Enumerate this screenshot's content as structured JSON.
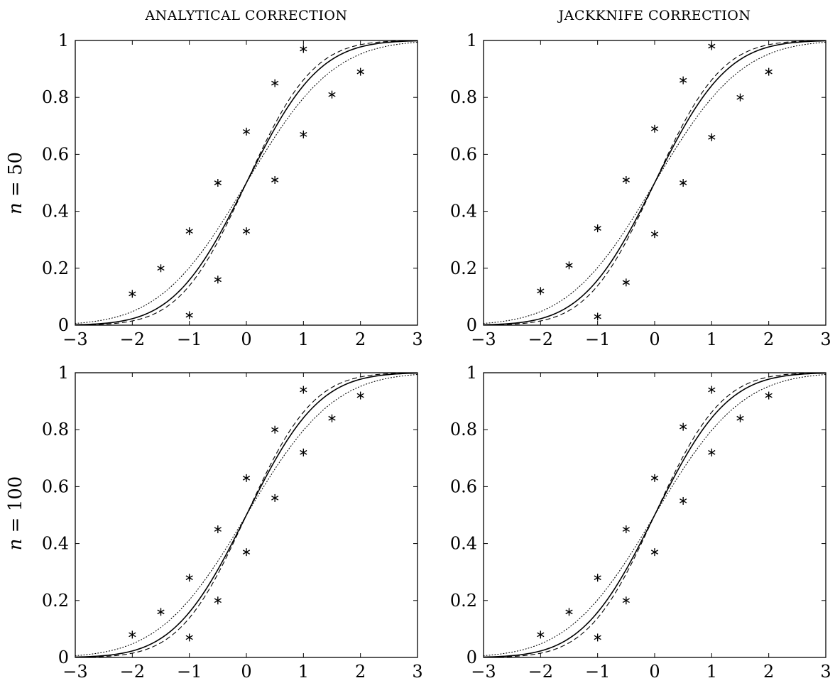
{
  "column_titles": [
    "ANALYTICAL CORRECTION",
    "JACKKNIFE CORRECTION"
  ],
  "row_labels": [
    {
      "var": "n",
      "eq": " = 50"
    },
    {
      "var": "n",
      "eq": " = 100"
    }
  ],
  "chart_data": [
    {
      "type": "line",
      "title": "ANALYTICAL CORRECTION",
      "row_label": "n = 50",
      "xlim": [
        -3,
        3
      ],
      "ylim": [
        0,
        1
      ],
      "xticks": [
        -3,
        -2,
        -1,
        0,
        1,
        2,
        3
      ],
      "yticks": [
        0,
        0.2,
        0.4,
        0.6,
        0.8,
        1
      ],
      "grid": false,
      "series": [
        {
          "style": "solid",
          "curve": "normal_cdf",
          "sigma": 1.0
        },
        {
          "style": "dashed",
          "curve": "normal_cdf",
          "sigma": 0.92
        },
        {
          "style": "dotted",
          "curve": "normal_cdf",
          "sigma": 1.2
        },
        {
          "style": "markers",
          "marker": "asterisk",
          "points": [
            [
              -2,
              0.11
            ],
            [
              -1.5,
              0.2
            ],
            [
              -1,
              0.33
            ],
            [
              -1,
              0.035
            ],
            [
              -0.5,
              0.5
            ],
            [
              -0.5,
              0.16
            ],
            [
              0,
              0.68
            ],
            [
              0,
              0.33
            ],
            [
              0.5,
              0.85
            ],
            [
              0.5,
              0.51
            ],
            [
              1,
              0.97
            ],
            [
              1,
              0.67
            ],
            [
              1.5,
              0.81
            ],
            [
              2,
              0.89
            ]
          ]
        }
      ]
    },
    {
      "type": "line",
      "title": "JACKKNIFE CORRECTION",
      "row_label": "n = 50",
      "xlim": [
        -3,
        3
      ],
      "ylim": [
        0,
        1
      ],
      "xticks": [
        -3,
        -2,
        -1,
        0,
        1,
        2,
        3
      ],
      "yticks": [
        0,
        0.2,
        0.4,
        0.6,
        0.8,
        1
      ],
      "grid": false,
      "series": [
        {
          "style": "solid",
          "curve": "normal_cdf",
          "sigma": 1.0
        },
        {
          "style": "dashed",
          "curve": "normal_cdf",
          "sigma": 0.92
        },
        {
          "style": "dotted",
          "curve": "normal_cdf",
          "sigma": 1.2
        },
        {
          "style": "markers",
          "marker": "asterisk",
          "points": [
            [
              -2,
              0.12
            ],
            [
              -1.5,
              0.21
            ],
            [
              -1,
              0.34
            ],
            [
              -1,
              0.03
            ],
            [
              -0.5,
              0.51
            ],
            [
              -0.5,
              0.15
            ],
            [
              0,
              0.69
            ],
            [
              0,
              0.32
            ],
            [
              0.5,
              0.86
            ],
            [
              0.5,
              0.5
            ],
            [
              1,
              0.98
            ],
            [
              1,
              0.66
            ],
            [
              1.5,
              0.8
            ],
            [
              2,
              0.89
            ]
          ]
        }
      ]
    },
    {
      "type": "line",
      "title": "ANALYTICAL CORRECTION",
      "row_label": "n = 100",
      "xlim": [
        -3,
        3
      ],
      "ylim": [
        0,
        1
      ],
      "xticks": [
        -3,
        -2,
        -1,
        0,
        1,
        2,
        3
      ],
      "yticks": [
        0,
        0.2,
        0.4,
        0.6,
        0.8,
        1
      ],
      "grid": false,
      "series": [
        {
          "style": "solid",
          "curve": "normal_cdf",
          "sigma": 1.0
        },
        {
          "style": "dashed",
          "curve": "normal_cdf",
          "sigma": 0.92
        },
        {
          "style": "dotted",
          "curve": "normal_cdf",
          "sigma": 1.2
        },
        {
          "style": "markers",
          "marker": "asterisk",
          "points": [
            [
              -2,
              0.08
            ],
            [
              -1.5,
              0.16
            ],
            [
              -1,
              0.28
            ],
            [
              -1,
              0.07
            ],
            [
              -0.5,
              0.45
            ],
            [
              -0.5,
              0.2
            ],
            [
              0,
              0.63
            ],
            [
              0,
              0.37
            ],
            [
              0.5,
              0.8
            ],
            [
              0.5,
              0.56
            ],
            [
              1,
              0.94
            ],
            [
              1,
              0.72
            ],
            [
              1.5,
              0.84
            ],
            [
              2,
              0.92
            ]
          ]
        }
      ]
    },
    {
      "type": "line",
      "title": "JACKKNIFE CORRECTION",
      "row_label": "n = 100",
      "xlim": [
        -3,
        3
      ],
      "ylim": [
        0,
        1
      ],
      "xticks": [
        -3,
        -2,
        -1,
        0,
        1,
        2,
        3
      ],
      "yticks": [
        0,
        0.2,
        0.4,
        0.6,
        0.8,
        1
      ],
      "grid": false,
      "series": [
        {
          "style": "solid",
          "curve": "normal_cdf",
          "sigma": 1.0
        },
        {
          "style": "dashed",
          "curve": "normal_cdf",
          "sigma": 0.92
        },
        {
          "style": "dotted",
          "curve": "normal_cdf",
          "sigma": 1.2
        },
        {
          "style": "markers",
          "marker": "asterisk",
          "points": [
            [
              -2,
              0.08
            ],
            [
              -1.5,
              0.16
            ],
            [
              -1,
              0.28
            ],
            [
              -1,
              0.07
            ],
            [
              -0.5,
              0.45
            ],
            [
              -0.5,
              0.2
            ],
            [
              0,
              0.63
            ],
            [
              0,
              0.37
            ],
            [
              0.5,
              0.81
            ],
            [
              0.5,
              0.55
            ],
            [
              1,
              0.94
            ],
            [
              1,
              0.72
            ],
            [
              1.5,
              0.84
            ],
            [
              2,
              0.92
            ]
          ]
        }
      ]
    }
  ]
}
